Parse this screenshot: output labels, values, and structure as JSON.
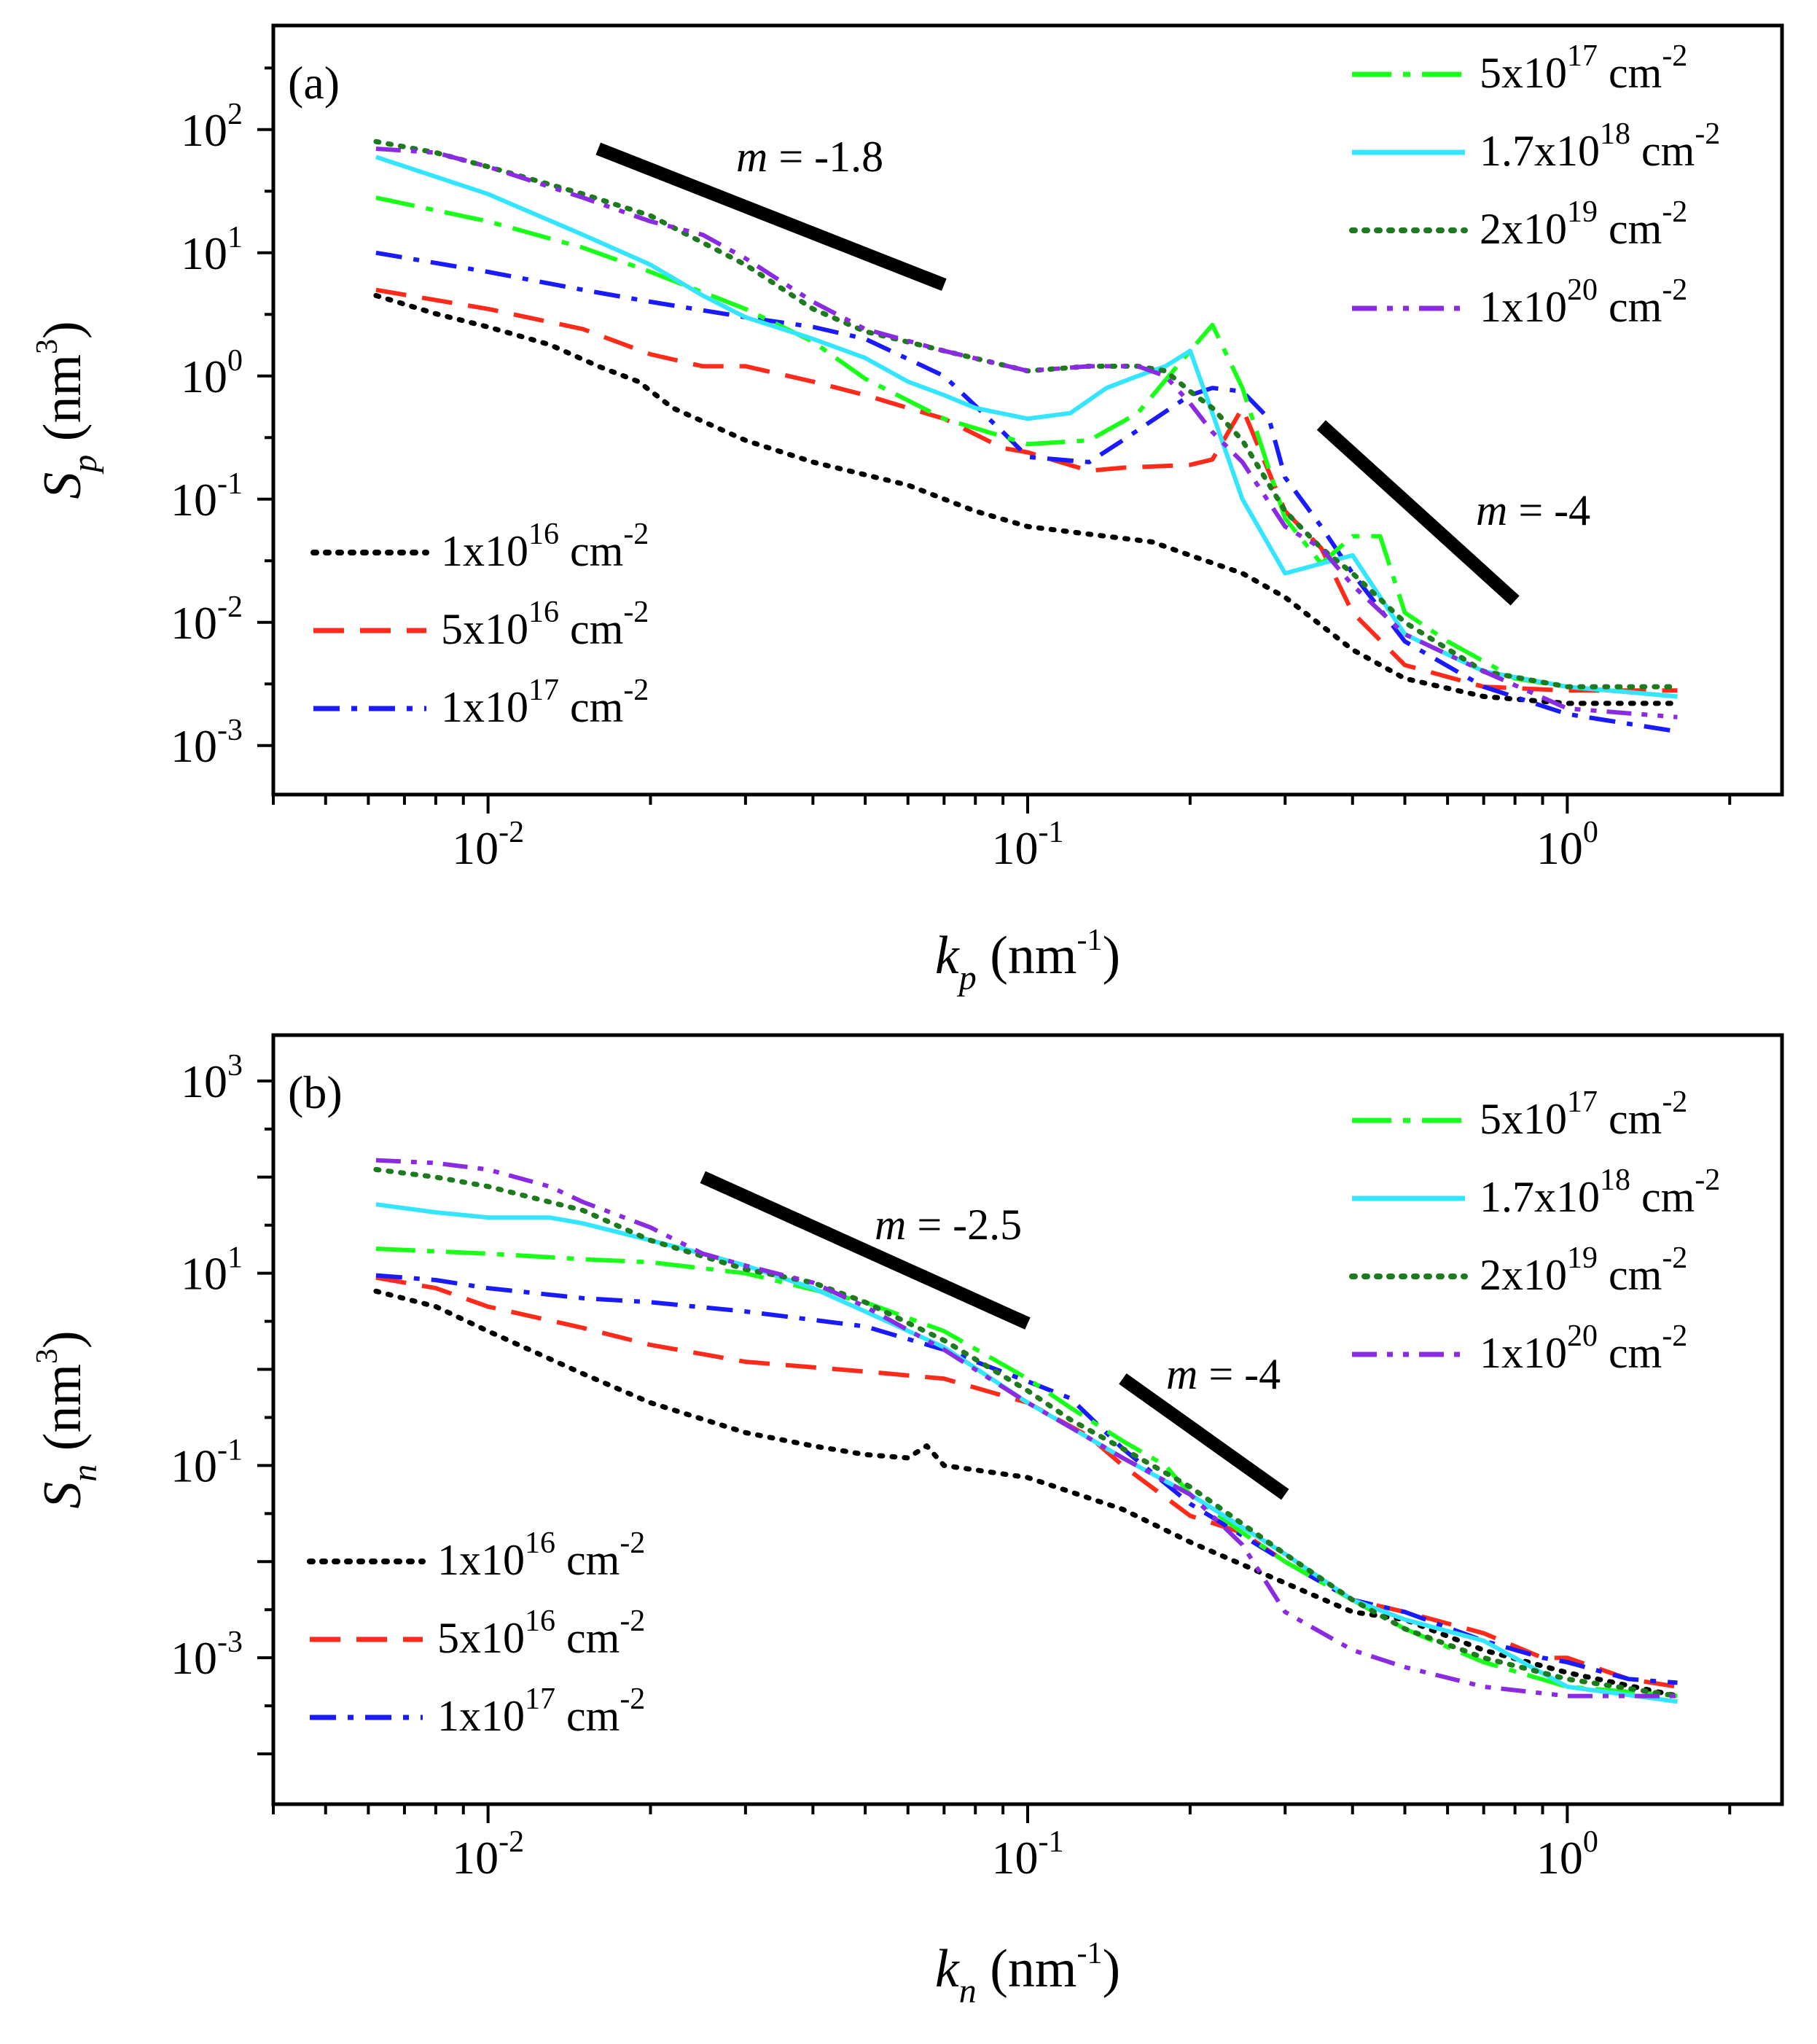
{
  "chart_data": [
    {
      "type": "line",
      "panel_label": "(a)",
      "xlabel": {
        "var": "k",
        "sub": "p",
        "unit": "(nm",
        "unit_sup": "-1",
        "unit_end": ")"
      },
      "ylabel": {
        "var": "S",
        "sub": "p",
        "unit": "(nm",
        "unit_sup": "3",
        "unit_end": ")"
      },
      "x_scale": "log",
      "y_scale": "log",
      "xlim": [
        0.004,
        2.5
      ],
      "ylim": [
        0.0004,
        700
      ],
      "x_ticks": [
        {
          "value": 0.01,
          "base": "10",
          "exp": "-2"
        },
        {
          "value": 0.1,
          "base": "10",
          "exp": "-1"
        },
        {
          "value": 1,
          "base": "10",
          "exp": "0"
        }
      ],
      "y_ticks": [
        {
          "value": 0.001,
          "base": "10",
          "exp": "-3"
        },
        {
          "value": 0.01,
          "base": "10",
          "exp": "-2"
        },
        {
          "value": 0.1,
          "base": "10",
          "exp": "-1"
        },
        {
          "value": 1,
          "base": "10",
          "exp": "0"
        },
        {
          "value": 10,
          "base": "10",
          "exp": "1"
        },
        {
          "value": 100,
          "base": "10",
          "exp": "2"
        }
      ],
      "slope_lines": [
        {
          "m_label": "m",
          "value_label": " = -1.8",
          "x": [
            0.016,
            0.07
          ],
          "y": [
            70,
            5.5
          ]
        },
        {
          "m_label": "m",
          "value_label": " = -4",
          "x": [
            0.35,
            0.8
          ],
          "y": [
            0.4,
            0.015
          ]
        }
      ],
      "series": [
        {
          "name": "1x10",
          "sup": "16",
          "unit": " cm",
          "unit_sup": "-2",
          "color": "#000000",
          "dash": "dot",
          "legend": "left",
          "x": [
            0.0062,
            0.008,
            0.01,
            0.013,
            0.016,
            0.019,
            0.022,
            0.03,
            0.04,
            0.06,
            0.08,
            0.1,
            0.13,
            0.17,
            0.2,
            0.25,
            0.3,
            0.4,
            0.5,
            0.7,
            1.0,
            1.6
          ],
          "y": [
            4.5,
            3.2,
            2.5,
            1.8,
            1.2,
            0.9,
            0.55,
            0.3,
            0.2,
            0.13,
            0.08,
            0.06,
            0.052,
            0.045,
            0.035,
            0.025,
            0.016,
            0.006,
            0.0035,
            0.0025,
            0.0022,
            0.0022
          ]
        },
        {
          "name": "5x10",
          "sup": "16",
          "unit": " cm",
          "unit_sup": "-2",
          "color": "#ff2a1a",
          "dash": "dash",
          "legend": "left",
          "x": [
            0.0062,
            0.01,
            0.015,
            0.02,
            0.025,
            0.03,
            0.04,
            0.05,
            0.07,
            0.09,
            0.1,
            0.13,
            0.15,
            0.2,
            0.22,
            0.25,
            0.3,
            0.35,
            0.4,
            0.5,
            0.7,
            1.0,
            1.6
          ],
          "y": [
            5,
            3.5,
            2.4,
            1.5,
            1.2,
            1.2,
            0.9,
            0.7,
            0.45,
            0.26,
            0.24,
            0.17,
            0.18,
            0.19,
            0.21,
            0.55,
            0.08,
            0.04,
            0.012,
            0.0045,
            0.003,
            0.0028,
            0.0028
          ]
        },
        {
          "name": "1x10",
          "sup": "17",
          "unit": " cm",
          "unit_sup": "-2",
          "color": "#1a1aff",
          "dash": "dashdot",
          "legend": "left",
          "x": [
            0.0062,
            0.01,
            0.015,
            0.02,
            0.03,
            0.04,
            0.05,
            0.07,
            0.09,
            0.1,
            0.13,
            0.15,
            0.2,
            0.22,
            0.25,
            0.28,
            0.3,
            0.35,
            0.4,
            0.5,
            0.7,
            1.0,
            1.6
          ],
          "y": [
            10,
            7,
            5,
            4,
            3,
            2.5,
            2,
            1,
            0.35,
            0.22,
            0.2,
            0.3,
            0.7,
            0.8,
            0.75,
            0.45,
            0.15,
            0.06,
            0.025,
            0.007,
            0.003,
            0.0018,
            0.0013
          ]
        },
        {
          "name": "5x10",
          "sup": "17",
          "unit": " cm",
          "unit_sup": "-2",
          "color": "#1aff1a",
          "dash": "longdashdot",
          "legend": "right",
          "x": [
            0.0062,
            0.01,
            0.015,
            0.02,
            0.03,
            0.04,
            0.05,
            0.07,
            0.1,
            0.13,
            0.16,
            0.2,
            0.22,
            0.25,
            0.3,
            0.35,
            0.4,
            0.45,
            0.5,
            0.6,
            0.8,
            1.0,
            1.6
          ],
          "y": [
            28,
            18,
            11,
            7,
            3.5,
            1.9,
            0.95,
            0.45,
            0.28,
            0.3,
            0.5,
            1.6,
            2.6,
            0.8,
            0.07,
            0.03,
            0.05,
            0.05,
            0.012,
            0.007,
            0.0035,
            0.003,
            0.0025
          ]
        },
        {
          "name": "1.7x10",
          "sup": "18",
          "unit": " cm",
          "unit_sup": "-2",
          "color": "#33e5ff",
          "dash": "solid",
          "legend": "right",
          "x": [
            0.0062,
            0.01,
            0.015,
            0.02,
            0.025,
            0.03,
            0.04,
            0.05,
            0.06,
            0.07,
            0.08,
            0.1,
            0.12,
            0.14,
            0.16,
            0.18,
            0.2,
            0.22,
            0.25,
            0.3,
            0.35,
            0.4,
            0.5,
            0.7,
            1.0,
            1.6
          ],
          "y": [
            60,
            30,
            14,
            8,
            4.5,
            3,
            2,
            1.4,
            0.9,
            0.7,
            0.55,
            0.45,
            0.5,
            0.8,
            1.0,
            1.2,
            1.6,
            0.5,
            0.1,
            0.025,
            0.03,
            0.035,
            0.008,
            0.004,
            0.003,
            0.0025
          ]
        },
        {
          "name": "2x10",
          "sup": "19",
          "unit": " cm",
          "unit_sup": "-2",
          "color": "#1e7a1e",
          "dash": "dot",
          "legend": "right",
          "x": [
            0.0062,
            0.008,
            0.01,
            0.015,
            0.02,
            0.03,
            0.04,
            0.05,
            0.07,
            0.1,
            0.13,
            0.16,
            0.18,
            0.2,
            0.22,
            0.25,
            0.3,
            0.35,
            0.4,
            0.5,
            0.7,
            1.0,
            1.6
          ],
          "y": [
            80,
            65,
            50,
            30,
            20,
            8,
            3.5,
            2.3,
            1.6,
            1.1,
            1.2,
            1.2,
            1.1,
            0.75,
            0.55,
            0.3,
            0.08,
            0.04,
            0.025,
            0.01,
            0.004,
            0.003,
            0.003
          ]
        },
        {
          "name": "1x10",
          "sup": "20",
          "unit": " cm",
          "unit_sup": "-2",
          "color": "#8a2be2",
          "dash": "dashdotdot",
          "legend": "right",
          "x": [
            0.0062,
            0.008,
            0.01,
            0.015,
            0.02,
            0.025,
            0.03,
            0.04,
            0.05,
            0.07,
            0.1,
            0.13,
            0.16,
            0.18,
            0.2,
            0.22,
            0.25,
            0.3,
            0.35,
            0.4,
            0.5,
            0.7,
            1.0,
            1.6
          ],
          "y": [
            70,
            65,
            50,
            28,
            18,
            14,
            9,
            4,
            2.4,
            1.6,
            1.1,
            1.2,
            1.2,
            1.0,
            0.6,
            0.35,
            0.2,
            0.06,
            0.04,
            0.02,
            0.008,
            0.004,
            0.002,
            0.0017
          ]
        }
      ]
    },
    {
      "type": "line",
      "panel_label": "(b)",
      "xlabel": {
        "var": "k",
        "sub": "n",
        "unit": "(nm",
        "unit_sup": "-1",
        "unit_end": ")"
      },
      "ylabel": {
        "var": "S",
        "sub": "n",
        "unit": "(nm",
        "unit_sup": "3",
        "unit_end": ")"
      },
      "x_scale": "log",
      "y_scale": "log",
      "xlim": [
        0.004,
        2.5
      ],
      "ylim": [
        3e-05,
        3000
      ],
      "x_ticks": [
        {
          "value": 0.01,
          "base": "10",
          "exp": "-2"
        },
        {
          "value": 0.1,
          "base": "10",
          "exp": "-1"
        },
        {
          "value": 1,
          "base": "10",
          "exp": "0"
        }
      ],
      "y_ticks": [
        {
          "value": 0.001,
          "base": "10",
          "exp": "-3"
        },
        {
          "value": 0.1,
          "base": "10",
          "exp": "-1"
        },
        {
          "value": 10,
          "base": "10",
          "exp": "1"
        },
        {
          "value": 1000,
          "base": "10",
          "exp": "3"
        }
      ],
      "slope_lines": [
        {
          "m_label": "m",
          "value_label": " = -2.5",
          "x": [
            0.025,
            0.1
          ],
          "y": [
            100,
            3
          ]
        },
        {
          "m_label": "m",
          "value_label": " = -4",
          "x": [
            0.15,
            0.3
          ],
          "y": [
            0.8,
            0.05
          ]
        }
      ],
      "series": [
        {
          "name": "1x10",
          "sup": "16",
          "unit": " cm",
          "unit_sup": "-2",
          "color": "#000000",
          "dash": "dot",
          "legend": "left",
          "x": [
            0.0062,
            0.008,
            0.01,
            0.015,
            0.02,
            0.03,
            0.04,
            0.05,
            0.06,
            0.065,
            0.07,
            0.08,
            0.1,
            0.15,
            0.2,
            0.3,
            0.4,
            0.5,
            0.7,
            1.0,
            1.6
          ],
          "y": [
            6.5,
            4.5,
            2.5,
            0.9,
            0.45,
            0.22,
            0.16,
            0.13,
            0.12,
            0.16,
            0.1,
            0.09,
            0.075,
            0.035,
            0.016,
            0.006,
            0.003,
            0.0025,
            0.0012,
            0.0007,
            0.0004
          ]
        },
        {
          "name": "5x10",
          "sup": "16",
          "unit": " cm",
          "unit_sup": "-2",
          "color": "#ff2a1a",
          "dash": "dash",
          "legend": "left",
          "x": [
            0.0062,
            0.008,
            0.01,
            0.015,
            0.02,
            0.03,
            0.05,
            0.07,
            0.1,
            0.13,
            0.15,
            0.2,
            0.25,
            0.3,
            0.4,
            0.5,
            0.7,
            0.9,
            1.0,
            1.3,
            1.6
          ],
          "y": [
            9,
            7,
            4.5,
            2.7,
            1.8,
            1.2,
            0.95,
            0.8,
            0.45,
            0.2,
            0.1,
            0.03,
            0.02,
            0.01,
            0.004,
            0.003,
            0.0018,
            0.001,
            0.001,
            0.0006,
            0.0005
          ]
        },
        {
          "name": "1x10",
          "sup": "17",
          "unit": " cm",
          "unit_sup": "-2",
          "color": "#1a1aff",
          "dash": "dashdot",
          "legend": "left",
          "x": [
            0.0062,
            0.008,
            0.01,
            0.015,
            0.02,
            0.03,
            0.05,
            0.07,
            0.1,
            0.12,
            0.15,
            0.2,
            0.3,
            0.4,
            0.5,
            0.7,
            0.9,
            1.0,
            1.3,
            1.6
          ],
          "y": [
            9.5,
            8.5,
            7,
            5.5,
            5,
            4,
            2.8,
            1.6,
            0.75,
            0.5,
            0.15,
            0.04,
            0.01,
            0.004,
            0.003,
            0.0015,
            0.001,
            0.0009,
            0.0006,
            0.00055
          ]
        },
        {
          "name": "5x10",
          "sup": "17",
          "unit": " cm",
          "unit_sup": "-2",
          "color": "#1aff1a",
          "dash": "longdashdot",
          "legend": "right",
          "x": [
            0.0062,
            0.01,
            0.015,
            0.02,
            0.03,
            0.05,
            0.07,
            0.1,
            0.12,
            0.15,
            0.18,
            0.2,
            0.25,
            0.3,
            0.4,
            0.5,
            0.7,
            1.0,
            1.6
          ],
          "y": [
            18,
            16,
            14,
            13,
            10,
            5,
            2.5,
            0.8,
            0.4,
            0.18,
            0.1,
            0.05,
            0.02,
            0.01,
            0.004,
            0.002,
            0.0009,
            0.0005,
            0.0004
          ]
        },
        {
          "name": "1.7x10",
          "sup": "18",
          "unit": " cm",
          "unit_sup": "-2",
          "color": "#33e5ff",
          "dash": "solid",
          "legend": "right",
          "x": [
            0.0062,
            0.008,
            0.01,
            0.013,
            0.015,
            0.02,
            0.025,
            0.03,
            0.04,
            0.05,
            0.07,
            0.1,
            0.12,
            0.15,
            0.2,
            0.3,
            0.4,
            0.5,
            0.7,
            1.0,
            1.6
          ],
          "y": [
            52,
            43,
            38,
            38,
            33,
            22,
            16,
            12,
            7,
            4,
            1.7,
            0.45,
            0.25,
            0.12,
            0.05,
            0.012,
            0.004,
            0.0025,
            0.0015,
            0.0005,
            0.00035
          ]
        },
        {
          "name": "2x10",
          "sup": "19",
          "unit": " cm",
          "unit_sup": "-2",
          "color": "#1e7a1e",
          "dash": "dot",
          "legend": "right",
          "x": [
            0.0062,
            0.008,
            0.01,
            0.015,
            0.02,
            0.025,
            0.03,
            0.04,
            0.05,
            0.07,
            0.1,
            0.12,
            0.15,
            0.2,
            0.3,
            0.4,
            0.5,
            0.7,
            1.0,
            1.6
          ],
          "y": [
            120,
            100,
            80,
            45,
            22,
            15,
            11,
            8,
            5,
            2,
            0.6,
            0.3,
            0.15,
            0.06,
            0.012,
            0.004,
            0.002,
            0.001,
            0.0006,
            0.0004
          ]
        },
        {
          "name": "1x10",
          "sup": "20",
          "unit": " cm",
          "unit_sup": "-2",
          "color": "#8a2be2",
          "dash": "dashdotdot",
          "legend": "right",
          "x": [
            0.0062,
            0.008,
            0.01,
            0.013,
            0.015,
            0.02,
            0.025,
            0.03,
            0.04,
            0.05,
            0.07,
            0.1,
            0.12,
            0.15,
            0.2,
            0.25,
            0.3,
            0.4,
            0.5,
            0.7,
            1.0,
            1.6
          ],
          "y": [
            150,
            140,
            120,
            80,
            55,
            30,
            16,
            12,
            8,
            4.5,
            1.6,
            0.45,
            0.25,
            0.12,
            0.05,
            0.015,
            0.003,
            0.0012,
            0.0008,
            0.0005,
            0.0004,
            0.0004
          ]
        }
      ]
    }
  ]
}
